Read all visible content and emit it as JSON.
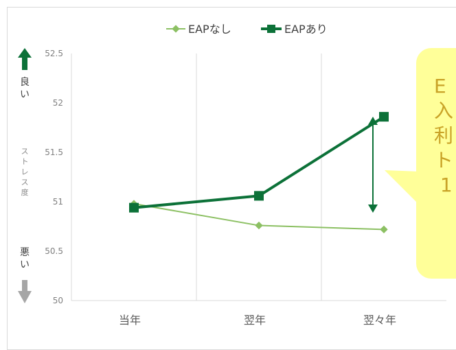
{
  "chart_data": {
    "type": "line",
    "categories": [
      "当年",
      "翌年",
      "翌々年"
    ],
    "series": [
      {
        "name": "EAPなし",
        "values": [
          50.98,
          50.76,
          50.72
        ],
        "color": "#8cc063",
        "marker": "diamond"
      },
      {
        "name": "EAPあり",
        "values": [
          50.94,
          51.06,
          51.86
        ],
        "color": "#0c7138",
        "marker": "square"
      }
    ],
    "ylim": [
      50,
      52.5
    ],
    "yticks": [
      "50",
      "50.5",
      "51",
      "51.5",
      "52",
      "52.5"
    ],
    "ylabel": "ストレス度",
    "grid": "vertical",
    "legend": "top",
    "annotations": {
      "good_label": "良い",
      "bad_label": "悪い",
      "good_arrow_color": "#0c7138",
      "bad_arrow_color": "#a6a6a6",
      "difference_arrow_color": "#0c7138"
    }
  },
  "callout": {
    "text_fragment": "E\n入\n利\nト\n 1",
    "background": "#ffff99"
  }
}
